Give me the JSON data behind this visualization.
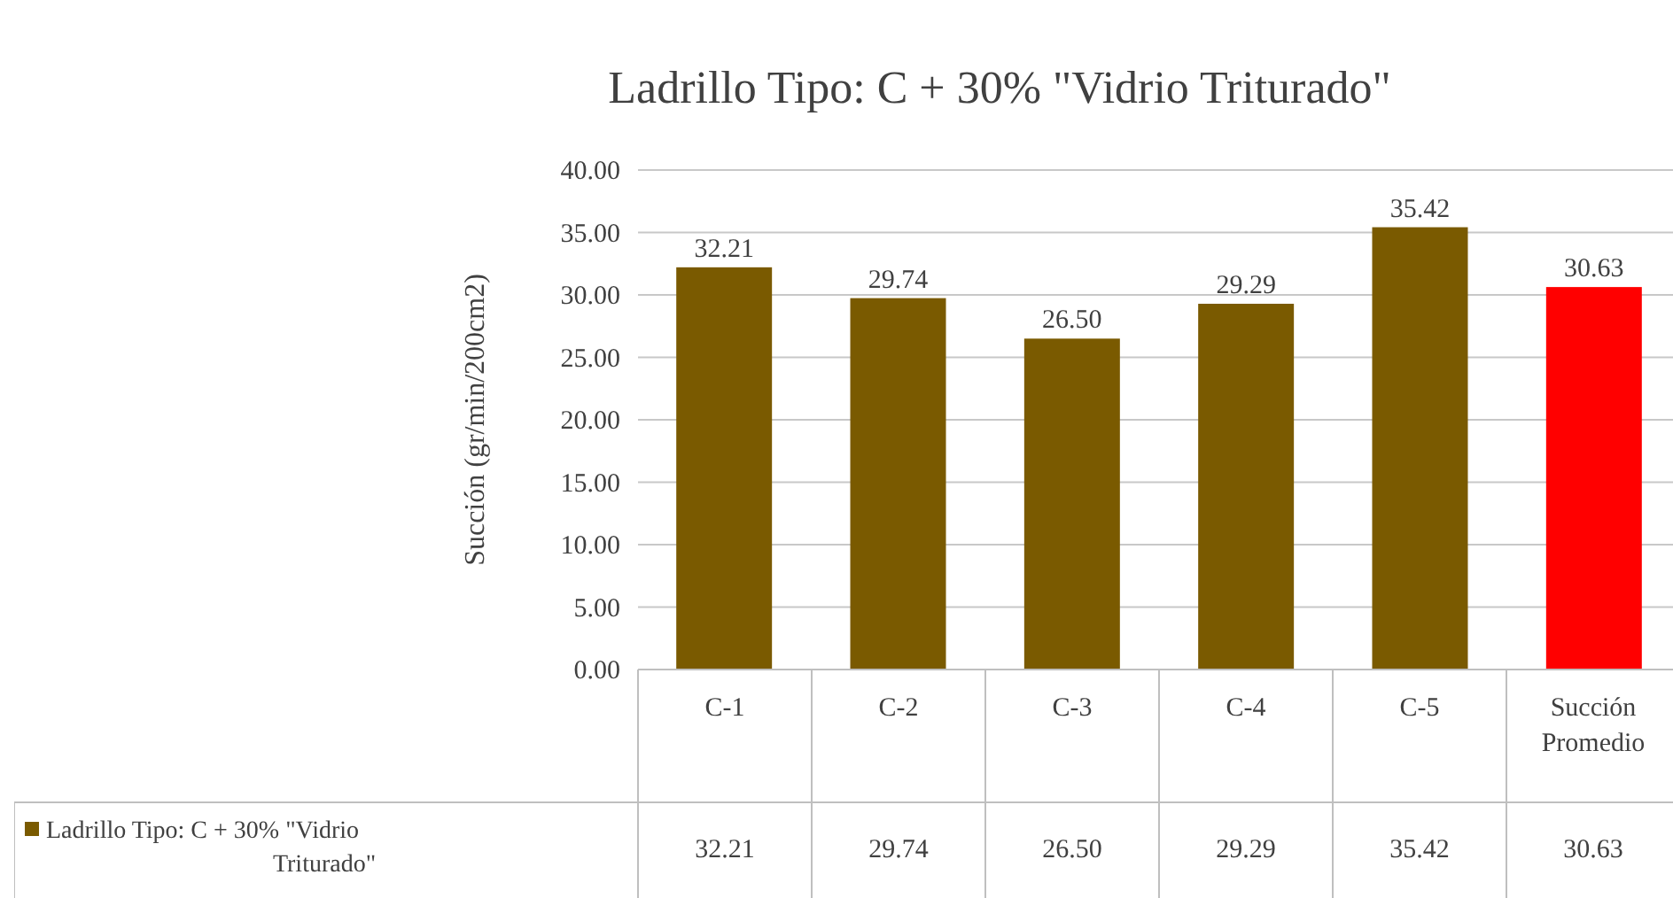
{
  "chart_data": {
    "type": "bar",
    "title": "Ladrillo Tipo: C + 30% \"Vidrio Triturado\"",
    "ylabel": "Succión (gr/min/200cm2)",
    "categories": [
      "C-1",
      "C-2",
      "C-3",
      "C-4",
      "C-5",
      "Succión Promedio"
    ],
    "series": [
      {
        "name": "Ladrillo Tipo: C + 30% \"Vidrio Triturado\"",
        "color": "#7a5a00",
        "colors": [
          "#7a5a00",
          "#7a5a00",
          "#7a5a00",
          "#7a5a00",
          "#7a5a00",
          "#ff0000"
        ],
        "values": [
          32.21,
          29.74,
          26.5,
          29.29,
          35.42,
          30.63
        ],
        "value_labels": [
          "32.21",
          "29.74",
          "26.50",
          "29.29",
          "35.42",
          "30.63"
        ]
      }
    ],
    "ylim": [
      0,
      40
    ],
    "yticks": [
      {
        "value": 0,
        "label": "0.00"
      },
      {
        "value": 5,
        "label": "5.00"
      },
      {
        "value": 10,
        "label": "10.00"
      },
      {
        "value": 15,
        "label": "15.00"
      },
      {
        "value": 20,
        "label": "20.00"
      },
      {
        "value": 25,
        "label": "25.00"
      },
      {
        "value": 30,
        "label": "30.00"
      },
      {
        "value": 35,
        "label": "35.00"
      },
      {
        "value": 40,
        "label": "40.00"
      }
    ],
    "grid": "y",
    "legend": "bottom"
  }
}
